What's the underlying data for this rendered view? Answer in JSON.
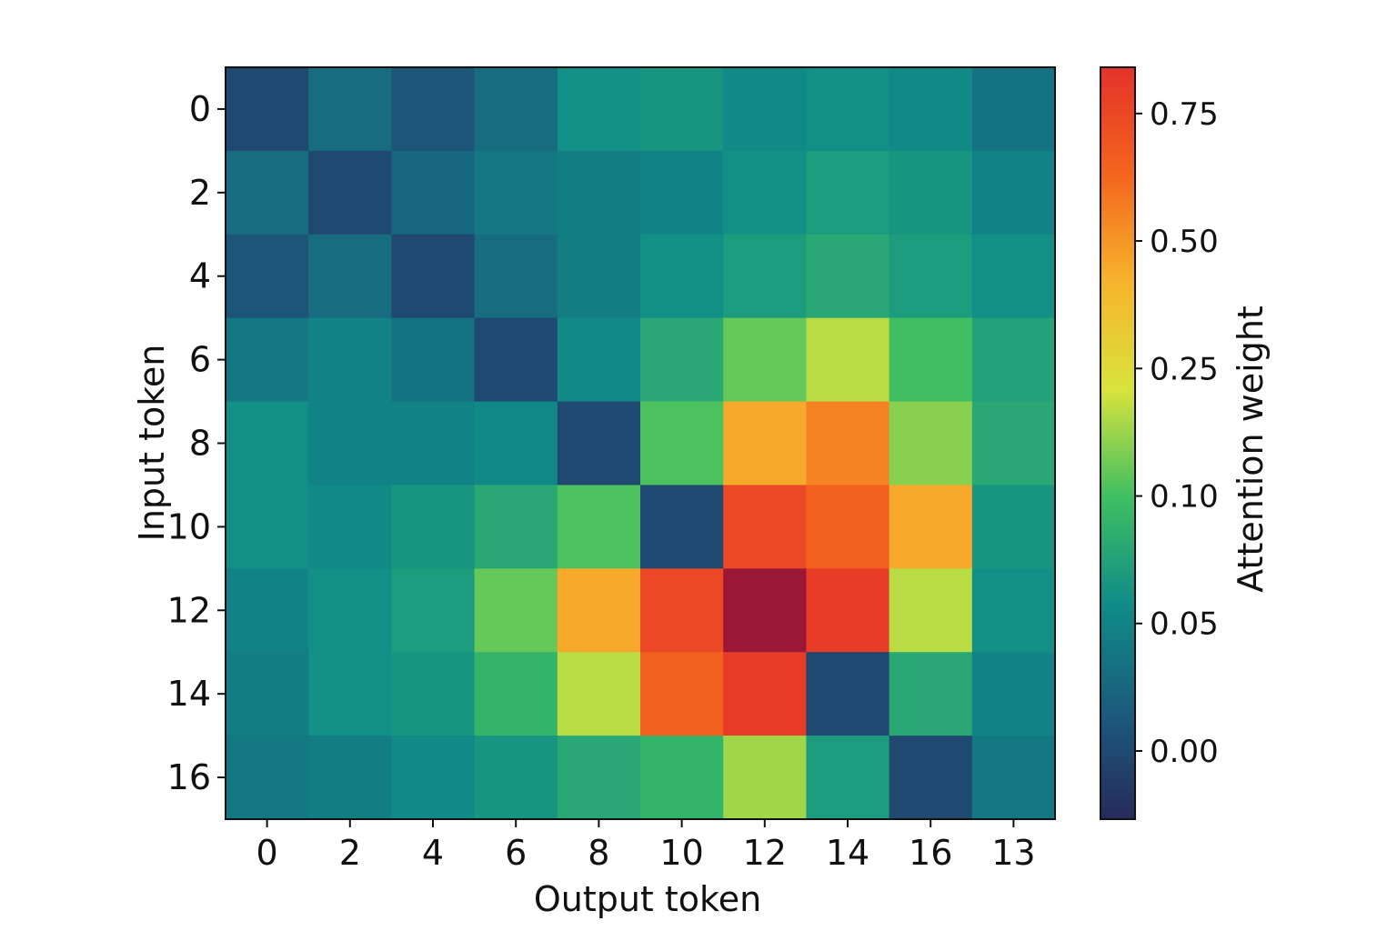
{
  "chart_data": {
    "type": "heatmap",
    "xlabel": "Output token",
    "ylabel": "Input token",
    "x_tick_labels": [
      "0",
      "2",
      "4",
      "6",
      "8",
      "10",
      "12",
      "14",
      "16",
      "13"
    ],
    "y_tick_labels": [
      "0",
      "2",
      "4",
      "6",
      "8",
      "10",
      "12",
      "14",
      "16"
    ],
    "colorbar": {
      "label": "Attention weight",
      "tick_labels": [
        "0.00",
        "0.05",
        "0.10",
        "0.25",
        "0.50",
        "0.75"
      ],
      "colors": [
        "#262a5c",
        "#1b5b7c",
        "#0f8c88",
        "#3fbf62",
        "#d8e33c",
        "#f6b42c",
        "#f4651e",
        "#e4322a"
      ]
    },
    "values": [
      [
        0.0,
        0.03,
        0.01,
        0.03,
        0.06,
        0.065,
        0.055,
        0.06,
        0.055,
        0.035
      ],
      [
        0.03,
        0.0,
        0.025,
        0.04,
        0.045,
        0.05,
        0.06,
        0.07,
        0.065,
        0.05
      ],
      [
        0.01,
        0.03,
        0.0,
        0.03,
        0.045,
        0.06,
        0.07,
        0.08,
        0.07,
        0.06
      ],
      [
        0.04,
        0.05,
        0.035,
        0.0,
        0.055,
        0.08,
        0.13,
        0.2,
        0.1,
        0.075
      ],
      [
        0.06,
        0.05,
        0.05,
        0.055,
        0.0,
        0.11,
        0.45,
        0.55,
        0.16,
        0.08
      ],
      [
        0.06,
        0.055,
        0.065,
        0.08,
        0.11,
        0.0,
        0.75,
        0.65,
        0.45,
        0.065
      ],
      [
        0.05,
        0.06,
        0.07,
        0.13,
        0.45,
        0.75,
        0.85,
        0.8,
        0.2,
        0.06
      ],
      [
        0.045,
        0.06,
        0.065,
        0.09,
        0.2,
        0.65,
        0.8,
        0.0,
        0.08,
        0.05
      ],
      [
        0.04,
        0.045,
        0.055,
        0.065,
        0.08,
        0.09,
        0.18,
        0.07,
        0.0,
        0.04
      ]
    ]
  }
}
